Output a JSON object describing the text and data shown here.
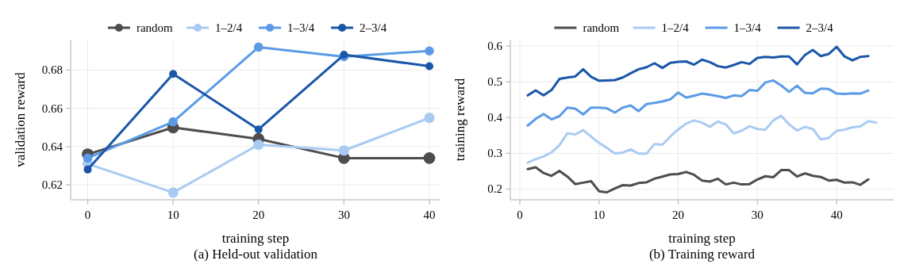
{
  "chart_data": [
    {
      "type": "line",
      "title": "(a) Held-out validation",
      "xlabel": "training step",
      "ylabel": "validation reward",
      "x": [
        0,
        10,
        20,
        30,
        40
      ],
      "xlim": [
        -2,
        41.3
      ],
      "ylim": [
        0.6122,
        0.6959
      ],
      "xticks": [
        0,
        10,
        20,
        30,
        40
      ],
      "yticks": [
        0.62,
        0.64,
        0.66,
        0.68
      ],
      "grid": true,
      "legend": "top",
      "marker": "circle",
      "line_style": "solid",
      "series": [
        {
          "name": "random",
          "color": "#4d4d4d",
          "values": [
            0.636,
            0.65,
            0.644,
            0.634,
            0.634
          ]
        },
        {
          "name": "1–2/4",
          "color": "#a9cbf2",
          "values": [
            0.631,
            0.616,
            0.641,
            0.638,
            0.655
          ]
        },
        {
          "name": "1–3/4",
          "color": "#5b9be6",
          "values": [
            0.634,
            0.653,
            0.692,
            0.687,
            0.69
          ]
        },
        {
          "name": "2–3/4",
          "color": "#1a56a8",
          "values": [
            0.628,
            0.678,
            0.649,
            0.688,
            0.682
          ]
        }
      ]
    },
    {
      "type": "line",
      "title": "(b) Training reward",
      "xlabel": "training step",
      "ylabel": "training reward",
      "x": [
        1,
        2,
        3,
        4,
        5,
        6,
        7,
        8,
        9,
        10,
        11,
        12,
        13,
        14,
        15,
        16,
        17,
        18,
        19,
        20,
        21,
        22,
        23,
        24,
        25,
        26,
        27,
        28,
        29,
        30,
        31,
        32,
        33,
        34,
        35,
        36,
        37,
        38,
        39,
        40,
        41,
        42,
        43,
        44
      ],
      "xlim": [
        -1.2,
        47.2
      ],
      "ylim": [
        0.17,
        0.618
      ],
      "xticks": [
        0,
        10,
        20,
        30,
        40
      ],
      "yticks": [
        0.2,
        0.3,
        0.4,
        0.5,
        0.6
      ],
      "grid": true,
      "legend": "top",
      "marker": "none",
      "line_style": "solid",
      "series": [
        {
          "name": "random",
          "color": "#4d4d4d",
          "values": [
            0.256,
            0.261,
            0.245,
            0.237,
            0.251,
            0.235,
            0.214,
            0.218,
            0.222,
            0.194,
            0.191,
            0.202,
            0.211,
            0.21,
            0.217,
            0.219,
            0.229,
            0.235,
            0.241,
            0.242,
            0.248,
            0.24,
            0.224,
            0.221,
            0.229,
            0.213,
            0.218,
            0.213,
            0.214,
            0.227,
            0.236,
            0.233,
            0.253,
            0.253,
            0.235,
            0.244,
            0.237,
            0.234,
            0.224,
            0.226,
            0.218,
            0.219,
            0.212,
            0.227
          ]
        },
        {
          "name": "1–2/4",
          "color": "#a9cbf2",
          "x": [
            1,
            2,
            3,
            4,
            5,
            6,
            7,
            8,
            9,
            10,
            11,
            12,
            13,
            14,
            15,
            16,
            17,
            18,
            19,
            20,
            21,
            22,
            23,
            24,
            25,
            26,
            27,
            28,
            29,
            30,
            31,
            32,
            33,
            34,
            35,
            36,
            37,
            38,
            39,
            40,
            41,
            42,
            43,
            44,
            45
          ],
          "values": [
            0.274,
            0.284,
            0.291,
            0.303,
            0.323,
            0.356,
            0.353,
            0.365,
            0.347,
            0.329,
            0.315,
            0.3,
            0.302,
            0.311,
            0.299,
            0.299,
            0.326,
            0.324,
            0.347,
            0.367,
            0.383,
            0.392,
            0.386,
            0.374,
            0.389,
            0.381,
            0.356,
            0.363,
            0.376,
            0.368,
            0.366,
            0.392,
            0.405,
            0.381,
            0.364,
            0.374,
            0.368,
            0.339,
            0.343,
            0.363,
            0.366,
            0.373,
            0.375,
            0.39,
            0.386
          ]
        },
        {
          "name": "1–3/4",
          "color": "#5b9be6",
          "values": [
            0.378,
            0.396,
            0.41,
            0.395,
            0.404,
            0.428,
            0.425,
            0.409,
            0.428,
            0.428,
            0.426,
            0.414,
            0.428,
            0.434,
            0.418,
            0.438,
            0.441,
            0.445,
            0.451,
            0.47,
            0.456,
            0.461,
            0.467,
            0.464,
            0.46,
            0.455,
            0.462,
            0.46,
            0.477,
            0.475,
            0.498,
            0.504,
            0.49,
            0.472,
            0.489,
            0.469,
            0.468,
            0.481,
            0.48,
            0.467,
            0.466,
            0.468,
            0.467,
            0.476
          ]
        },
        {
          "name": "2–3/4",
          "color": "#1a56a8",
          "values": [
            0.462,
            0.476,
            0.462,
            0.477,
            0.508,
            0.512,
            0.515,
            0.535,
            0.514,
            0.503,
            0.504,
            0.505,
            0.512,
            0.524,
            0.535,
            0.541,
            0.552,
            0.539,
            0.553,
            0.556,
            0.557,
            0.548,
            0.562,
            0.555,
            0.544,
            0.54,
            0.547,
            0.555,
            0.55,
            0.567,
            0.57,
            0.568,
            0.571,
            0.571,
            0.549,
            0.575,
            0.589,
            0.572,
            0.578,
            0.598,
            0.571,
            0.56,
            0.57,
            0.572
          ]
        }
      ]
    }
  ]
}
